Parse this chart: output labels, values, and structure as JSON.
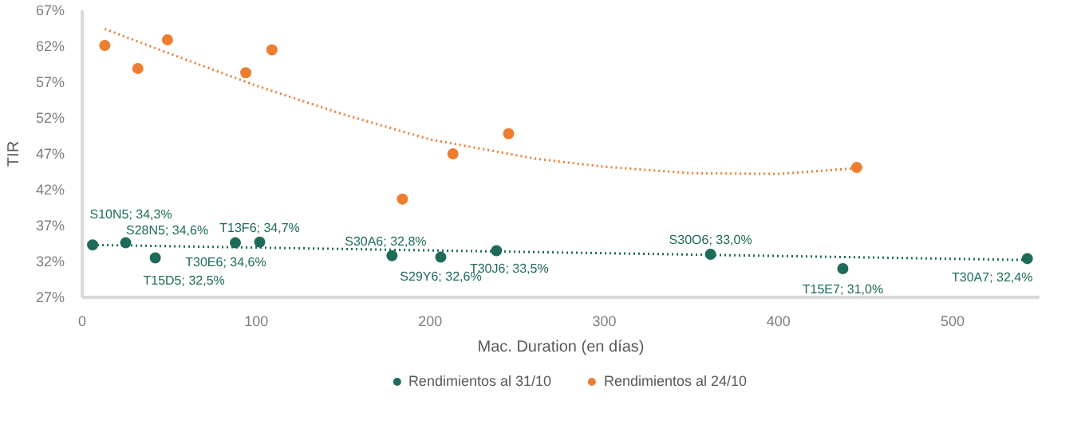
{
  "chart_data": {
    "type": "scatter",
    "xlabel": "Mac. Duration (en días)",
    "ylabel": "TIR",
    "xlim": [
      0,
      550
    ],
    "xticks": [
      0,
      100,
      200,
      300,
      400,
      500
    ],
    "ylim": [
      27,
      67
    ],
    "yticks": [
      {
        "value": 27,
        "label": "27%"
      },
      {
        "value": 32,
        "label": "32%"
      },
      {
        "value": 37,
        "label": "37%"
      },
      {
        "value": 42,
        "label": "42%"
      },
      {
        "value": 47,
        "label": "47%"
      },
      {
        "value": 52,
        "label": "52%"
      },
      {
        "value": 57,
        "label": "57%"
      },
      {
        "value": 62,
        "label": "62%"
      },
      {
        "value": 67,
        "label": "67%"
      }
    ],
    "grid": false,
    "legend": "bottom",
    "marker": "circle",
    "series": [
      {
        "name": "Rendimientos al 31/10",
        "color": "#1f6b5a",
        "x": [
          6,
          25,
          42,
          88,
          102,
          178,
          206,
          238,
          361,
          437,
          543
        ],
        "values": [
          34.3,
          34.6,
          32.5,
          34.6,
          34.7,
          32.8,
          32.6,
          33.5,
          33.0,
          31.0,
          32.4
        ],
        "value_labels": [
          "S10N5; 34,3%",
          "S28N5; 34,6%",
          "T15D5; 32,5%",
          "T30E6; 34,6%",
          "T13F6; 34,7%",
          "S30A6; 32,8%",
          "S29Y6; 32,6%",
          "T30J6; 33,5%",
          "S30O6; 33,0%",
          "T15E7; 31,0%",
          "T30A7; 32,4%"
        ]
      },
      {
        "name": "Rendimientos al 24/10",
        "color": "#ed7d31",
        "x": [
          13,
          32,
          49,
          94,
          109,
          184,
          213,
          245,
          445
        ],
        "values": [
          62.1,
          58.9,
          62.9,
          58.3,
          61.5,
          40.7,
          47.0,
          49.8,
          45.1
        ]
      },
      {
        "type": "line",
        "color": "#1f6b5a",
        "line_style": "dotted",
        "marker": "none",
        "x": [
          6,
          543
        ],
        "values": [
          34.3,
          32.2
        ]
      },
      {
        "type": "line",
        "color": "#ed7d31",
        "line_style": "dotted",
        "marker": "none",
        "x": [
          13,
          50,
          100,
          150,
          200,
          261,
          300,
          350,
          400,
          445
        ],
        "values": [
          64.4,
          61.0,
          56.5,
          52.5,
          49.0,
          46.3,
          45.2,
          44.3,
          44.2,
          45.0
        ]
      }
    ]
  }
}
